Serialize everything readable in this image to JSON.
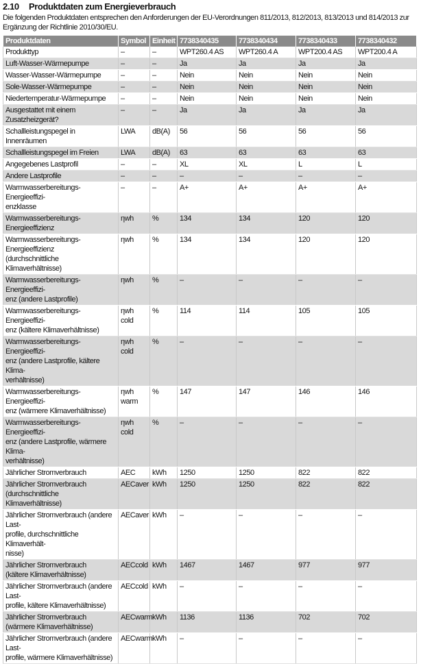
{
  "section": {
    "number": "2.10",
    "title": "Produktdaten zum Energieverbrauch"
  },
  "intro": "Die folgenden Produktdaten entsprechen den Anforderungen der EU-Verordnungen 811/2013, 812/2013, 813/2013 und 814/2013 zur Ergänzung der Richtlinie 2010/30/EU.",
  "table": {
    "headers": [
      "Produktdaten",
      "Symbol",
      "Einheit",
      "7738340435",
      "7738340434",
      "7738340433",
      "7738340432"
    ],
    "rows": [
      [
        "Produkttyp",
        "–",
        "–",
        "WPT260.4 AS",
        "WPT260.4 A",
        "WPT200.4 AS",
        "WPT200.4 A"
      ],
      [
        "Luft-Wasser-Wärmepumpe",
        "–",
        "–",
        "Ja",
        "Ja",
        "Ja",
        "Ja"
      ],
      [
        "Wasser-Wasser-Wärmepumpe",
        "–",
        "–",
        "Nein",
        "Nein",
        "Nein",
        "Nein"
      ],
      [
        "Sole-Wasser-Wärmepumpe",
        "–",
        "–",
        "Nein",
        "Nein",
        "Nein",
        "Nein"
      ],
      [
        "Niedertemperatur-Wärmepumpe",
        "–",
        "–",
        "Nein",
        "Nein",
        "Nein",
        "Nein"
      ],
      [
        "Ausgestattet mit einem Zusatzheizgerät?",
        "–",
        "–",
        "Ja",
        "Ja",
        "Ja",
        "Ja"
      ],
      [
        "Schallleistungspegel in Innenräumen",
        "LWA",
        "dB(A)",
        "56",
        "56",
        "56",
        "56"
      ],
      [
        "Schallleistungspegel im Freien",
        "LWA",
        "dB(A)",
        "63",
        "63",
        "63",
        "63"
      ],
      [
        "Angegebenes Lastprofil",
        "–",
        "–",
        "XL",
        "XL",
        "L",
        "L"
      ],
      [
        "Andere Lastprofile",
        "–",
        "–",
        "–",
        "–",
        "–",
        "–"
      ],
      [
        "Warmwasserbereitungs-Energieeffizi-\nenzklasse",
        "–",
        "–",
        "A+",
        "A+",
        "A+",
        "A+"
      ],
      [
        "Warmwasserbereitungs-Energieeffizienz",
        "ηwh",
        "%",
        "134",
        "134",
        "120",
        "120"
      ],
      [
        "Warmwasserbereitungs-Energieeffizienz\n(durchschnittliche Klimaverhältnisse)",
        "ηwh",
        "%",
        "134",
        "134",
        "120",
        "120"
      ],
      [
        "Warmwasserbereitungs-Energieeffizi-\nenz (andere Lastprofile)",
        "ηwh",
        "%",
        "–",
        "–",
        "–",
        "–"
      ],
      [
        "Warmwasserbereitungs-Energieeffizi-\nenz (kältere Klimaverhältnisse)",
        "ηwh cold",
        "%",
        "114",
        "114",
        "105",
        "105"
      ],
      [
        "Warmwasserbereitungs-Energieeffizi-\nenz (andere Lastprofile, kältere Klima-\nverhältnisse)",
        "ηwh cold",
        "%",
        "–",
        "–",
        "–",
        "–"
      ],
      [
        "Warmwasserbereitungs-Energieeffizi-\nenz (wärmere Klimaverhältnisse)",
        "ηwh warm",
        "%",
        "147",
        "147",
        "146",
        "146"
      ],
      [
        "Warmwasserbereitungs-Energieeffizi-\nenz (andere Lastprofile, wärmere Klima-\nverhältnisse)",
        "ηwh cold",
        "%",
        "–",
        "–",
        "–",
        "–"
      ],
      [
        "Jährlicher Stromverbrauch",
        "AEC",
        "kWh",
        "1250",
        "1250",
        "822",
        "822"
      ],
      [
        "Jährlicher Stromverbrauch\n(durchschnittliche Klimaverhältnisse)",
        "AECaver",
        "kWh",
        "1250",
        "1250",
        "822",
        "822"
      ],
      [
        "Jährlicher Stromverbrauch (andere Last-\nprofile, durchschnittliche Klimaverhält-\nnisse)",
        "AECaver",
        "kWh",
        "–",
        "–",
        "–",
        "–"
      ],
      [
        "Jährlicher Stromverbrauch\n(kältere Klimaverhältnisse)",
        "AECcold",
        "kWh",
        "1467",
        "1467",
        "977",
        "977"
      ],
      [
        "Jährlicher Stromverbrauch (andere Last-\nprofile, kältere Klimaverhältnisse)",
        "AECcold",
        "kWh",
        "–",
        "–",
        "–",
        "–"
      ],
      [
        "Jährlicher Stromverbrauch\n(wärmere Klimaverhältnisse)",
        "AECwarm",
        "kWh",
        "1136",
        "1136",
        "702",
        "702"
      ],
      [
        "Jährlicher Stromverbrauch (andere Last-\nprofile, wärmere Klimaverhältnisse)",
        "AECwarm",
        "kWh",
        "–",
        "–",
        "–",
        "–"
      ]
    ]
  }
}
